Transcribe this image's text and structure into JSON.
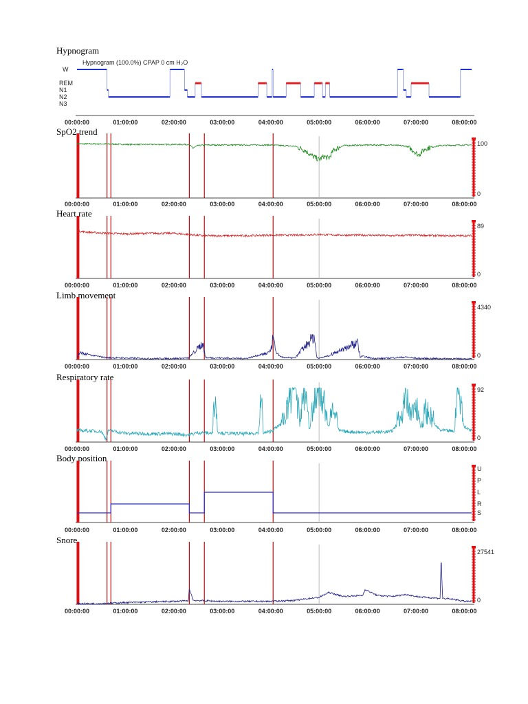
{
  "colors": {
    "hypnogram": "#1f2fd6",
    "rem": "#e02020",
    "spo2": "#1f8a1f",
    "heart_rate": "#d42020",
    "limb": "#20208a",
    "resp": "#2aa8b8",
    "position": "#2a2ac8",
    "snore": "#20208a",
    "event_line": "#b01010",
    "grid": "#bbbbbb"
  },
  "chart_data": [
    {
      "id": "hypnogram",
      "type": "line",
      "title": "Hypnogram",
      "subtitle": "Hypnogram  (100.0%)  CPAP 0 cm H₂O",
      "x_unit": "hours",
      "xlim": [
        0,
        8.15
      ],
      "x_ticks": [
        "00:00:00",
        "01:00:00",
        "02:00:00",
        "03:00:00",
        "04:00:00",
        "05:00:00",
        "06:00:00",
        "07:00:00",
        "08:00:00"
      ],
      "y_categories": [
        "W",
        "REM",
        "N1",
        "N2",
        "N3"
      ],
      "series": [
        {
          "values": [
            [
              0.0,
              "W"
            ],
            [
              0.6,
              "W"
            ],
            [
              0.62,
              "N1"
            ],
            [
              0.65,
              "N2"
            ],
            [
              1.9,
              "N2"
            ],
            [
              1.92,
              "W"
            ],
            [
              2.2,
              "W"
            ],
            [
              2.22,
              "N1"
            ],
            [
              2.28,
              "N2"
            ],
            [
              2.42,
              "N2"
            ],
            [
              2.44,
              "REM"
            ],
            [
              2.55,
              "REM"
            ],
            [
              2.57,
              "N2"
            ],
            [
              3.72,
              "N2"
            ],
            [
              3.74,
              "REM"
            ],
            [
              3.9,
              "REM"
            ],
            [
              3.92,
              "N2"
            ],
            [
              4.02,
              "N2"
            ],
            [
              4.03,
              "W"
            ],
            [
              4.05,
              "N2"
            ],
            [
              4.3,
              "N2"
            ],
            [
              4.32,
              "REM"
            ],
            [
              4.6,
              "REM"
            ],
            [
              4.62,
              "N2"
            ],
            [
              4.88,
              "N2"
            ],
            [
              4.9,
              "REM"
            ],
            [
              5.05,
              "REM"
            ],
            [
              5.07,
              "N2"
            ],
            [
              5.12,
              "N2"
            ],
            [
              5.13,
              "REM"
            ],
            [
              5.2,
              "REM"
            ],
            [
              5.22,
              "N2"
            ],
            [
              6.6,
              "N2"
            ],
            [
              6.62,
              "W"
            ],
            [
              6.72,
              "W"
            ],
            [
              6.74,
              "N1"
            ],
            [
              6.8,
              "N2"
            ],
            [
              6.88,
              "N2"
            ],
            [
              6.9,
              "REM"
            ],
            [
              7.25,
              "REM"
            ],
            [
              7.27,
              "N2"
            ],
            [
              7.9,
              "N2"
            ],
            [
              7.92,
              "W"
            ],
            [
              8.15,
              "W"
            ]
          ]
        }
      ]
    },
    {
      "id": "spo2",
      "type": "line",
      "title": "SpO2 trend",
      "x_unit": "hours",
      "xlim": [
        0,
        8.15
      ],
      "ylim": [
        0,
        100
      ],
      "y_tick_labels": [
        "100",
        "0"
      ],
      "x_ticks": [
        "00:00:00",
        "01:00:00",
        "02:00:00",
        "03:00:00",
        "04:00:00",
        "05:00:00",
        "06:00:00",
        "07:00:00",
        "08:00:00"
      ],
      "events": [
        0.02,
        0.62,
        0.7,
        2.32,
        2.63,
        4.05
      ],
      "series": [
        {
          "x": [
            0,
            0.5,
            1,
            1.5,
            2,
            2.3,
            2.4,
            2.5,
            2.7,
            3,
            3.5,
            4,
            4.2,
            4.5,
            4.7,
            4.85,
            5.0,
            5.1,
            5.2,
            5.3,
            5.5,
            6,
            6.5,
            6.8,
            6.95,
            7.05,
            7.2,
            7.5,
            8,
            8.15
          ],
          "y": [
            96,
            96,
            95,
            95,
            95,
            95,
            89,
            93,
            94,
            94,
            94,
            94,
            93,
            92,
            85,
            75,
            68,
            74,
            70,
            85,
            93,
            94,
            94,
            92,
            84,
            76,
            88,
            93,
            94,
            94
          ]
        }
      ]
    },
    {
      "id": "heart_rate",
      "type": "line",
      "title": "Heart rate",
      "x_unit": "hours",
      "xlim": [
        0,
        8.15
      ],
      "ylim": [
        0,
        89
      ],
      "y_tick_labels": [
        "89",
        "0"
      ],
      "x_ticks": [
        "00:00:00",
        "01:00:00",
        "02:00:00",
        "03:00:00",
        "04:00:00",
        "05:00:00",
        "06:00:00",
        "07:00:00",
        "08:00:00"
      ],
      "events": [
        0.02,
        0.62,
        0.7,
        2.32,
        2.63,
        4.05
      ],
      "series": [
        {
          "x": [
            0,
            0.2,
            0.6,
            1,
            1.5,
            2,
            2.3,
            2.6,
            3,
            3.5,
            4,
            4.5,
            5,
            5.5,
            6,
            6.5,
            7,
            7.5,
            8,
            8.15
          ],
          "y": [
            78,
            76,
            74,
            73,
            74,
            74,
            72,
            70,
            70,
            70,
            71,
            71,
            72,
            71,
            71,
            70,
            71,
            70,
            70,
            70
          ]
        }
      ]
    },
    {
      "id": "limb_movement",
      "type": "line",
      "title": "Limb movement",
      "x_unit": "hours",
      "xlim": [
        0,
        8.15
      ],
      "ylim": [
        0,
        4340
      ],
      "y_tick_labels": [
        "4340",
        "0"
      ],
      "x_ticks": [
        "00:00:00",
        "01:00:00",
        "02:00:00",
        "03:00:00",
        "04:00:00",
        "05:00:00",
        "06:00:00",
        "07:00:00",
        "08:00:00"
      ],
      "events": [
        0.02,
        0.62,
        0.7,
        2.32,
        2.63,
        4.05
      ],
      "series": [
        {
          "x": [
            0,
            0.05,
            0.3,
            0.6,
            1,
            1.5,
            2,
            2.3,
            2.6,
            2.65,
            2.7,
            3,
            3.3,
            3.5,
            4,
            4.05,
            4.1,
            4.2,
            4.5,
            4.9,
            4.95,
            5.0,
            5.2,
            5.8,
            5.85,
            5.9,
            6.1,
            6.3,
            6.8,
            7,
            7.5,
            8,
            8.15
          ],
          "y": [
            150,
            550,
            350,
            150,
            120,
            80,
            90,
            120,
            1300,
            200,
            140,
            120,
            100,
            90,
            600,
            1800,
            700,
            200,
            110,
            1900,
            200,
            110,
            300,
            1400,
            200,
            260,
            100,
            90,
            200,
            100,
            80,
            60,
            60
          ]
        }
      ]
    },
    {
      "id": "respiratory_rate",
      "type": "line",
      "title": "Respiratory rate",
      "x_unit": "hours",
      "xlim": [
        0,
        8.15
      ],
      "ylim": [
        0,
        92
      ],
      "y_tick_labels": [
        "92",
        "0"
      ],
      "x_ticks": [
        "00:00:00",
        "01:00:00",
        "02:00:00",
        "03:00:00",
        "04:00:00",
        "05:00:00",
        "06:00:00",
        "07:00:00",
        "08:00:00"
      ],
      "events": [
        0.02,
        0.62,
        0.7,
        2.32,
        2.63,
        4.05
      ],
      "series": [
        {
          "x": [
            0,
            0.5,
            0.6,
            0.65,
            1,
            1.5,
            2,
            2.3,
            2.5,
            2.8,
            2.85,
            2.9,
            3,
            3.5,
            3.75,
            3.8,
            3.85,
            4,
            4.3,
            4.5,
            4.6,
            4.7,
            4.8,
            4.9,
            5,
            5.2,
            5.3,
            5.4,
            5.5,
            6,
            6.5,
            6.7,
            6.8,
            6.9,
            7,
            7.1,
            7.2,
            7.5,
            7.8,
            7.85,
            8,
            8.15
          ],
          "y": [
            20,
            18,
            5,
            20,
            15,
            14,
            14,
            12,
            16,
            15,
            80,
            18,
            15,
            14,
            16,
            70,
            15,
            18,
            35,
            85,
            30,
            75,
            20,
            65,
            85,
            25,
            60,
            20,
            18,
            16,
            18,
            40,
            60,
            35,
            55,
            25,
            45,
            20,
            18,
            88,
            25,
            20
          ]
        }
      ]
    },
    {
      "id": "body_position",
      "type": "line",
      "title": "Body position",
      "x_unit": "hours",
      "xlim": [
        0,
        8.15
      ],
      "y_categories": [
        "U",
        "P",
        "L",
        "R",
        "S"
      ],
      "x_ticks": [
        "00:00:00",
        "01:00:00",
        "02:00:00",
        "03:00:00",
        "04:00:00",
        "05:00:00",
        "06:00:00",
        "07:00:00",
        "08:00:00"
      ],
      "events": [
        0.02,
        0.62,
        0.7,
        2.32,
        2.63,
        4.05
      ],
      "series": [
        {
          "values": [
            [
              0,
              "S"
            ],
            [
              0.7,
              "S"
            ],
            [
              0.7,
              "R"
            ],
            [
              2.32,
              "R"
            ],
            [
              2.32,
              "S"
            ],
            [
              2.63,
              "S"
            ],
            [
              2.63,
              "L"
            ],
            [
              4.05,
              "L"
            ],
            [
              4.05,
              "S"
            ],
            [
              8.15,
              "S"
            ]
          ]
        }
      ]
    },
    {
      "id": "snore",
      "type": "line",
      "title": "Snore",
      "x_unit": "hours",
      "xlim": [
        0,
        8.15
      ],
      "ylim": [
        0,
        27541
      ],
      "y_tick_labels": [
        "27541",
        "0"
      ],
      "x_ticks": [
        "00:00:00",
        "01:00:00",
        "02:00:00",
        "03:00:00",
        "04:00:00",
        "05:00:00",
        "06:00:00",
        "07:00:00",
        "08:00:00"
      ],
      "events": [
        0.02,
        0.62,
        0.7,
        2.32,
        2.63,
        4.05
      ],
      "series": [
        {
          "x": [
            0,
            0.5,
            1,
            1.5,
            2,
            2.3,
            2.32,
            2.4,
            3,
            3.5,
            4,
            4.5,
            4.8,
            5,
            5.2,
            5.5,
            5.9,
            5.95,
            6.2,
            6.5,
            6.8,
            7,
            7.2,
            7.5,
            7.52,
            7.55,
            7.8,
            8,
            8.15
          ],
          "y": [
            300,
            400,
            900,
            1200,
            1500,
            1800,
            8000,
            2000,
            1500,
            1500,
            1500,
            2000,
            3000,
            3500,
            6000,
            4000,
            4500,
            7500,
            4500,
            4000,
            5000,
            4000,
            3500,
            3000,
            25000,
            3000,
            2500,
            1500,
            1500
          ]
        }
      ]
    }
  ]
}
